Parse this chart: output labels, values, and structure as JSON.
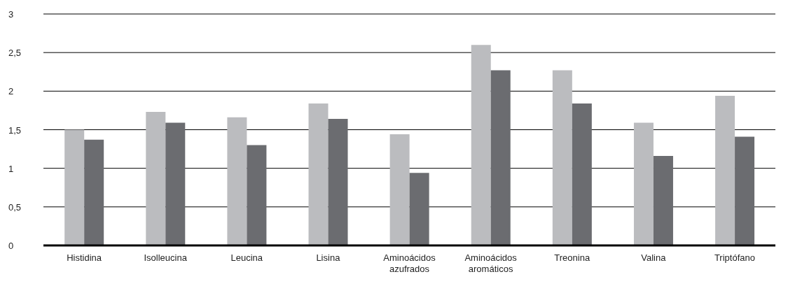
{
  "chart_data": {
    "type": "bar",
    "categories": [
      "Histidina",
      "Isolleucina",
      "Leucina",
      "Lisina",
      "Aminoácidos azufrados",
      "Aminoácidos aromáticos",
      "Treonina",
      "Valina",
      "Triptófano"
    ],
    "series": [
      {
        "color": "#bbbcbf",
        "values": [
          1.5,
          1.73,
          1.66,
          1.84,
          1.44,
          2.6,
          2.27,
          1.59,
          1.94
        ]
      },
      {
        "color": "#6b6c70",
        "values": [
          1.37,
          1.59,
          1.3,
          1.64,
          0.94,
          2.27,
          1.84,
          1.16,
          1.41
        ]
      }
    ],
    "ylim": [
      0,
      3
    ],
    "yticks": [
      0,
      {
        "value": 0.5,
        "label": "0,5"
      },
      1,
      {
        "value": 1.5,
        "label": "1,5"
      },
      2,
      {
        "value": 2.5,
        "label": "2,5"
      },
      3
    ],
    "grid": "y",
    "legend": false
  }
}
